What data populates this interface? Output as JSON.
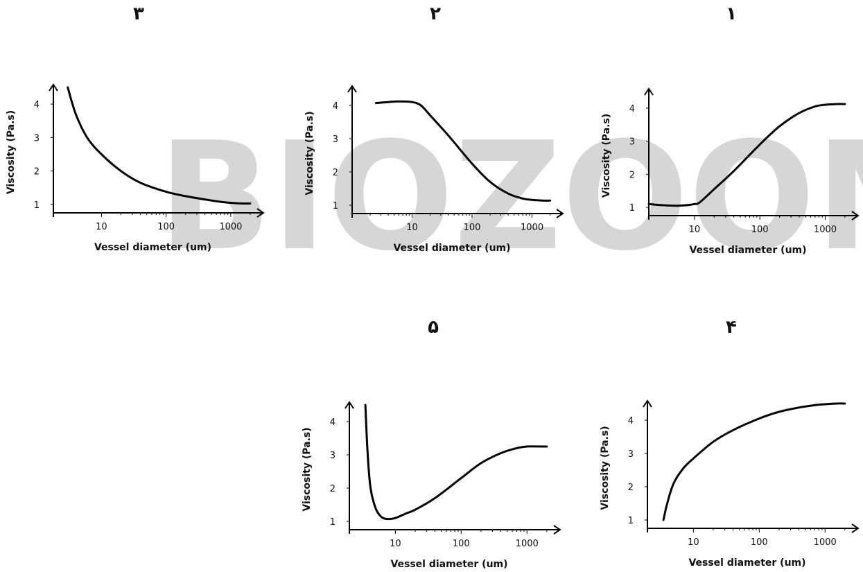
{
  "watermark": {
    "text": "BIOZOOM",
    "colors": {
      "gray": "#d4d4d4",
      "pink": "#f7c9d6"
    }
  },
  "chart_data": [
    {
      "type": "line",
      "panel_label": "۱",
      "xlabel": "Vessel diameter (um)",
      "ylabel": "Viscosity (Pa.s)",
      "x_scale": "log",
      "x_ticks": [
        "10",
        "100",
        "1000"
      ],
      "y_ticks": [
        "1",
        "2",
        "3",
        "4"
      ],
      "xlim": [
        2,
        2500
      ],
      "ylim": [
        0.75,
        4.5
      ],
      "series": [
        {
          "x": [
            2,
            3,
            5,
            8,
            10,
            12,
            20,
            40,
            100,
            200,
            400,
            700,
            1000,
            1500,
            2000
          ],
          "y": [
            1.1,
            1.07,
            1.05,
            1.07,
            1.1,
            1.15,
            1.55,
            2.1,
            2.9,
            3.45,
            3.85,
            4.05,
            4.1,
            4.12,
            4.12
          ]
        }
      ]
    },
    {
      "type": "line",
      "panel_label": "۲",
      "xlabel": "Vessel diameter (um)",
      "ylabel": "Viscosity (Pa.s)",
      "x_scale": "log",
      "x_ticks": [
        "10",
        "100",
        "1000"
      ],
      "y_ticks": [
        "1",
        "2",
        "3",
        "4"
      ],
      "xlim": [
        1,
        2500
      ],
      "ylim": [
        0.75,
        4.5
      ],
      "series": [
        {
          "x": [
            2.5,
            4,
            6,
            10,
            14,
            20,
            40,
            100,
            200,
            400,
            700,
            1000,
            1500,
            2000
          ],
          "y": [
            4.07,
            4.1,
            4.12,
            4.1,
            4.0,
            3.7,
            3.1,
            2.25,
            1.7,
            1.35,
            1.2,
            1.16,
            1.14,
            1.14
          ]
        }
      ]
    },
    {
      "type": "line",
      "panel_label": "۳",
      "xlabel": "Vessel diameter (um)",
      "ylabel": "Viscosity (Pa.s)",
      "x_scale": "log",
      "x_ticks": [
        "10",
        "100",
        "1000"
      ],
      "y_ticks": [
        "1",
        "2",
        "3",
        "4"
      ],
      "xlim": [
        1.8,
        2500
      ],
      "ylim": [
        0.75,
        4.5
      ],
      "series": [
        {
          "x": [
            3,
            4,
            6,
            10,
            20,
            40,
            100,
            200,
            400,
            700,
            1000,
            1500,
            2000
          ],
          "y": [
            4.5,
            3.7,
            3.0,
            2.5,
            2.0,
            1.65,
            1.38,
            1.25,
            1.15,
            1.08,
            1.05,
            1.03,
            1.03
          ]
        }
      ]
    },
    {
      "type": "line",
      "panel_label": "۴",
      "xlabel": "Vessel diameter (um)",
      "ylabel": "Viscosity (Pa.s)",
      "x_scale": "log",
      "x_ticks": [
        "10",
        "100",
        "1000"
      ],
      "y_ticks": [
        "1",
        "2",
        "3",
        "4"
      ],
      "xlim": [
        2,
        2500
      ],
      "ylim": [
        0.75,
        4.5
      ],
      "series": [
        {
          "x": [
            3.5,
            4,
            5,
            7,
            10,
            20,
            40,
            100,
            200,
            400,
            700,
            1000,
            1500,
            2000
          ],
          "y": [
            1.0,
            1.5,
            2.1,
            2.55,
            2.85,
            3.35,
            3.7,
            4.05,
            4.25,
            4.38,
            4.45,
            4.48,
            4.5,
            4.5
          ]
        }
      ]
    },
    {
      "type": "line",
      "panel_label": "۵",
      "xlabel": "Vessel diameter (um)",
      "ylabel": "Viscosity (Pa.s)",
      "x_scale": "log",
      "x_ticks": [
        "10",
        "100",
        "1000"
      ],
      "y_ticks": [
        "1",
        "2",
        "3",
        "4"
      ],
      "xlim": [
        2,
        2500
      ],
      "ylim": [
        0.75,
        4.5
      ],
      "series": [
        {
          "x": [
            3.5,
            3.8,
            4.2,
            5,
            6,
            7,
            8,
            10,
            15,
            20,
            40,
            100,
            200,
            400,
            700,
            1000,
            2000
          ],
          "y": [
            4.5,
            3.0,
            2.0,
            1.4,
            1.15,
            1.08,
            1.07,
            1.1,
            1.25,
            1.35,
            1.7,
            2.3,
            2.75,
            3.05,
            3.2,
            3.25,
            3.25
          ]
        }
      ]
    }
  ]
}
